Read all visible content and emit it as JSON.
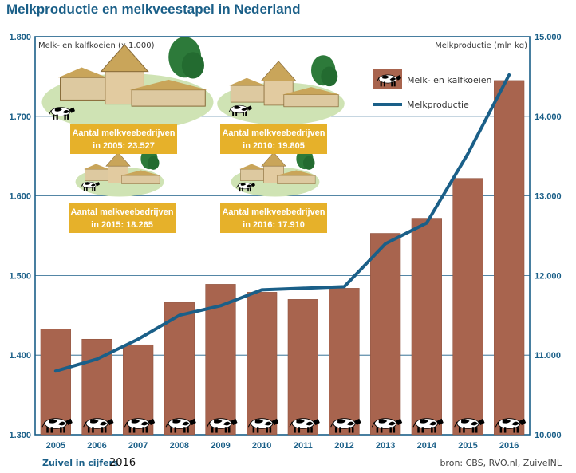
{
  "title": "Melkproductie en melkveestapel in Nederland",
  "footer": {
    "publication": "Zuivel in cijfers",
    "year": "2016",
    "source": "bron: CBS, RVO.nl, ZuivelNL"
  },
  "colors": {
    "bar": "#a8644e",
    "bar_edge": "#8a4e3a",
    "line": "#1a5f88",
    "axis": "#1a5f88",
    "grid": "#1a5f88",
    "badge": "#e6b12a",
    "title": "#1a5f88"
  },
  "farm_badges": [
    {
      "line1": "Aantal melkveebedrijven",
      "line2": "in 2005: 23.527"
    },
    {
      "line1": "Aantal melkveebedrijven",
      "line2": "in 2010: 19.805"
    },
    {
      "line1": "Aantal melkveebedrijven",
      "line2": "in 2015: 18.265"
    },
    {
      "line1": "Aantal melkveebedrijven",
      "line2": "in 2016: 17.910"
    }
  ],
  "chart_data": {
    "type": "bar",
    "categories": [
      "2005",
      "2006",
      "2007",
      "2008",
      "2009",
      "2010",
      "2011",
      "2012",
      "2013",
      "2014",
      "2015",
      "2016"
    ],
    "series": [
      {
        "name": "Melk- en kalfkoeien",
        "type": "bar",
        "axis": "left",
        "values": [
          1433,
          1420,
          1413,
          1466,
          1489,
          1479,
          1470,
          1484,
          1553,
          1572,
          1622,
          1745
        ]
      },
      {
        "name": "Melkproductie",
        "type": "line",
        "axis": "right",
        "values": [
          10800,
          10950,
          11200,
          11500,
          11620,
          11820,
          11840,
          11860,
          12400,
          12660,
          13530,
          14520
        ]
      }
    ],
    "y_left": {
      "label": "Melk- en kalfkoeien (x 1.000)",
      "range": [
        1300,
        1800
      ],
      "ticks": [
        "1.300",
        "1.400",
        "1.500",
        "1.600",
        "1.700",
        "1.800"
      ]
    },
    "y_right": {
      "label": "Melkproductie (mln kg)",
      "range": [
        10000,
        15000
      ],
      "ticks": [
        "10.000",
        "11.000",
        "12.000",
        "13.000",
        "14.000",
        "15.000"
      ]
    },
    "grid": true,
    "legend_position": "top-right"
  }
}
